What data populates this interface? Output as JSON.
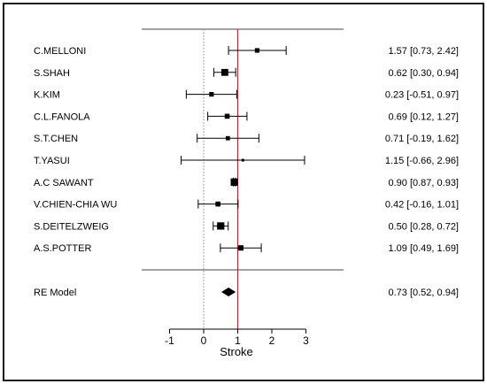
{
  "chart_data": {
    "type": "forest",
    "xlabel": "Stroke",
    "xlim": [
      -1,
      3
    ],
    "xticks": [
      -1,
      0,
      1,
      2,
      3
    ],
    "null_line_x": 0,
    "summary_line_x": 1,
    "summary_line_color": "#e8131c",
    "studies": [
      {
        "label": "C.MELLONI",
        "estimate": 1.57,
        "lower": 0.73,
        "upper": 2.42,
        "text": "1.57 [0.73, 2.42]",
        "weight": 0.9
      },
      {
        "label": "S.SHAH",
        "estimate": 0.62,
        "lower": 0.3,
        "upper": 0.94,
        "text": "0.62 [0.30, 0.94]",
        "weight": 1.5
      },
      {
        "label": "K.KIM",
        "estimate": 0.23,
        "lower": -0.51,
        "upper": 0.97,
        "text": "0.23 [-0.51, 0.97]",
        "weight": 0.9
      },
      {
        "label": "C.L.FANOLA",
        "estimate": 0.69,
        "lower": 0.12,
        "upper": 1.27,
        "text": "0.69 [0.12, 1.27]",
        "weight": 1.0
      },
      {
        "label": "S.T.CHEN",
        "estimate": 0.71,
        "lower": -0.19,
        "upper": 1.62,
        "text": "0.71 [-0.19, 1.62]",
        "weight": 0.8
      },
      {
        "label": "T.YASUI",
        "estimate": 1.15,
        "lower": -0.66,
        "upper": 2.96,
        "text": "1.15 [-0.66, 2.96]",
        "weight": 0.4
      },
      {
        "label": "A.C SAWANT",
        "estimate": 0.9,
        "lower": 0.87,
        "upper": 0.93,
        "text": "0.90 [0.87, 0.93]",
        "weight": 1.6
      },
      {
        "label": "V.CHIEN-CHIA WU",
        "estimate": 0.42,
        "lower": -0.16,
        "upper": 1.01,
        "text": "0.42 [-0.16, 1.01]",
        "weight": 1.0
      },
      {
        "label": "S.DEITELZWEIG",
        "estimate": 0.5,
        "lower": 0.28,
        "upper": 0.72,
        "text": "0.50 [0.28, 0.72]",
        "weight": 1.6
      },
      {
        "label": "A.S.POTTER",
        "estimate": 1.09,
        "lower": 0.49,
        "upper": 1.69,
        "text": "1.09 [0.49, 1.69]",
        "weight": 1.1
      }
    ],
    "summary": {
      "label": "RE Model",
      "estimate": 0.73,
      "lower": 0.52,
      "upper": 0.94,
      "text": "0.73 [0.52, 0.94]"
    }
  }
}
